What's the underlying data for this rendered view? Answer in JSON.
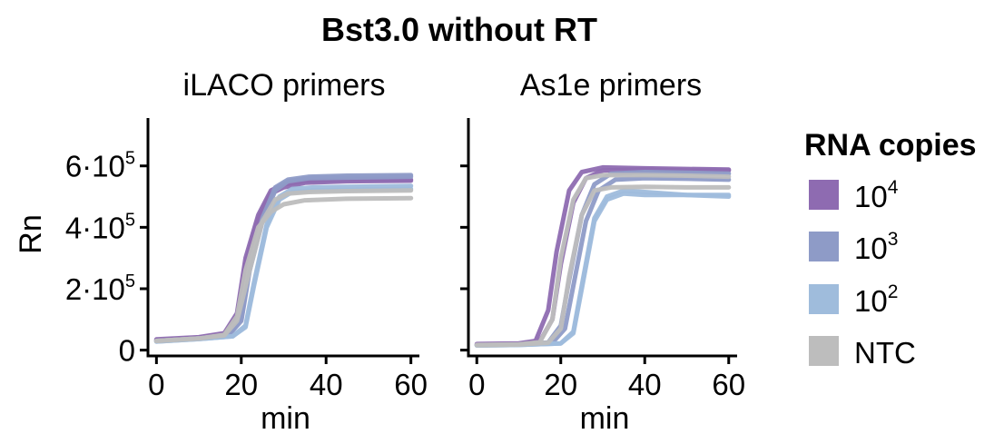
{
  "chart_data": {
    "type": "line",
    "title": "Bst3.0 without RT",
    "xlabel": "min",
    "ylabel": "Rn",
    "xlim": [
      -2,
      62
    ],
    "ylim": [
      -10000,
      750000
    ],
    "x_ticks": [
      0,
      20,
      40,
      60
    ],
    "y_ticks": [
      {
        "value": 0,
        "mant": "0",
        "exp": ""
      },
      {
        "value": 200000,
        "mant": "2·10",
        "exp": "5"
      },
      {
        "value": 400000,
        "mant": "4·10",
        "exp": "5"
      },
      {
        "value": 600000,
        "mant": "6·10",
        "exp": "5"
      }
    ],
    "grid": false,
    "legend": {
      "title": "RNA copies",
      "position": "right",
      "entries": [
        {
          "base": "10",
          "exp": "4",
          "color": "#8e6bb1"
        },
        {
          "base": "10",
          "exp": "3",
          "color": "#8e9bc7"
        },
        {
          "base": "10",
          "exp": "2",
          "color": "#9fbcdc"
        },
        {
          "base": "NTC",
          "exp": "",
          "color": "#bdbdbd"
        }
      ]
    },
    "panels": [
      {
        "label": "iLACO primers",
        "series": [
          {
            "group": "10^4",
            "color": "#8e6bb1",
            "x": [
              0,
              10,
              16,
              19,
              21,
              24,
              27,
              30,
              35,
              45,
              60
            ],
            "y": [
              35000,
              42000,
              55000,
              120000,
              300000,
              440000,
              520000,
              540000,
              550000,
              555000,
              555000
            ]
          },
          {
            "group": "10^4",
            "color": "#8e6bb1",
            "x": [
              0,
              10,
              16,
              19,
              21,
              24,
              27,
              30,
              35,
              45,
              60
            ],
            "y": [
              32000,
              40000,
              52000,
              110000,
              280000,
              430000,
              510000,
              530000,
              545000,
              550000,
              552000
            ]
          },
          {
            "group": "10^3",
            "color": "#8e9bc7",
            "x": [
              0,
              10,
              17,
              20,
              22,
              25,
              28,
              31,
              36,
              45,
              60
            ],
            "y": [
              30000,
              38000,
              48000,
              100000,
              270000,
              430000,
              530000,
              555000,
              565000,
              568000,
              570000
            ]
          },
          {
            "group": "10^3",
            "color": "#8e9bc7",
            "x": [
              0,
              10,
              17,
              20,
              22,
              25,
              28,
              31,
              36,
              45,
              60
            ],
            "y": [
              30000,
              38000,
              48000,
              95000,
              260000,
              420000,
              520000,
              550000,
              560000,
              562000,
              565000
            ]
          },
          {
            "group": "10^2",
            "color": "#9fbcdc",
            "x": [
              0,
              10,
              18,
              21,
              23,
              26,
              29,
              32,
              37,
              45,
              60
            ],
            "y": [
              28000,
              36000,
              45000,
              80000,
              220000,
              410000,
              500000,
              525000,
              530000,
              532000,
              535000
            ]
          },
          {
            "group": "10^2",
            "color": "#9fbcdc",
            "x": [
              0,
              10,
              18,
              21,
              23,
              26,
              29,
              32,
              37,
              45,
              60
            ],
            "y": [
              28000,
              36000,
              45000,
              75000,
              210000,
              400000,
              490000,
              515000,
              520000,
              522000,
              525000
            ]
          },
          {
            "group": "NTC",
            "color": "#bdbdbd",
            "x": [
              0,
              10,
              16,
              19,
              21,
              24,
              27,
              30,
              35,
              45,
              60
            ],
            "y": [
              30000,
              38000,
              50000,
              110000,
              260000,
              400000,
              450000,
              475000,
              488000,
              493000,
              495000
            ]
          },
          {
            "group": "NTC",
            "color": "#bdbdbd",
            "x": [
              0,
              10,
              16,
              19,
              22,
              25,
              28,
              31,
              36,
              45,
              60
            ],
            "y": [
              30000,
              38000,
              48000,
              95000,
              260000,
              420000,
              490000,
              510000,
              515000,
              518000,
              520000
            ]
          }
        ]
      },
      {
        "label": "As1e primers",
        "series": [
          {
            "group": "10^4",
            "color": "#8e6bb1",
            "x": [
              0,
              10,
              14,
              17,
              19,
              22,
              25,
              30,
              40,
              50,
              60
            ],
            "y": [
              20000,
              22000,
              30000,
              130000,
              320000,
              520000,
              580000,
              595000,
              592000,
              590000,
              588000
            ]
          },
          {
            "group": "10^4",
            "color": "#8e6bb1",
            "x": [
              0,
              10,
              15,
              18,
              20,
              23,
              26,
              30,
              40,
              50,
              60
            ],
            "y": [
              18000,
              20000,
              28000,
              100000,
              280000,
              480000,
              560000,
              585000,
              588000,
              585000,
              585000
            ]
          },
          {
            "group": "10^3",
            "color": "#8e9bc7",
            "x": [
              0,
              10,
              17,
              20,
              22,
              25,
              28,
              32,
              40,
              50,
              60
            ],
            "y": [
              16000,
              18000,
              25000,
              80000,
              230000,
              440000,
              540000,
              575000,
              580000,
              578000,
              575000
            ]
          },
          {
            "group": "10^3",
            "color": "#8e9bc7",
            "x": [
              0,
              10,
              18,
              21,
              23,
              26,
              29,
              33,
              40,
              50,
              60
            ],
            "y": [
              16000,
              18000,
              24000,
              70000,
              210000,
              420000,
              520000,
              555000,
              560000,
              558000,
              555000
            ]
          },
          {
            "group": "10^2",
            "color": "#9fbcdc",
            "x": [
              0,
              10,
              20,
              23,
              25,
              28,
              31,
              35,
              40,
              50,
              60
            ],
            "y": [
              15000,
              17000,
              22000,
              60000,
              210000,
              430000,
              500000,
              520000,
              515000,
              505000,
              500000
            ]
          },
          {
            "group": "10^2",
            "color": "#9fbcdc",
            "x": [
              0,
              10,
              20,
              23,
              25,
              28,
              31,
              35,
              40,
              50,
              60
            ],
            "y": [
              15000,
              17000,
              22000,
              55000,
              200000,
              420000,
              490000,
              510000,
              505000,
              505000,
              505000
            ]
          },
          {
            "group": "NTC",
            "color": "#bdbdbd",
            "x": [
              0,
              10,
              15,
              18,
              20,
              23,
              26,
              30,
              40,
              50,
              60
            ],
            "y": [
              17000,
              19000,
              26000,
              100000,
              300000,
              490000,
              560000,
              570000,
              570000,
              568000,
              565000
            ]
          },
          {
            "group": "NTC",
            "color": "#bdbdbd",
            "x": [
              0,
              10,
              17,
              20,
              22,
              25,
              28,
              32,
              40,
              50,
              60
            ],
            "y": [
              16000,
              18000,
              24000,
              70000,
              240000,
              440000,
              520000,
              530000,
              532000,
              530000,
              530000
            ]
          }
        ]
      }
    ]
  }
}
